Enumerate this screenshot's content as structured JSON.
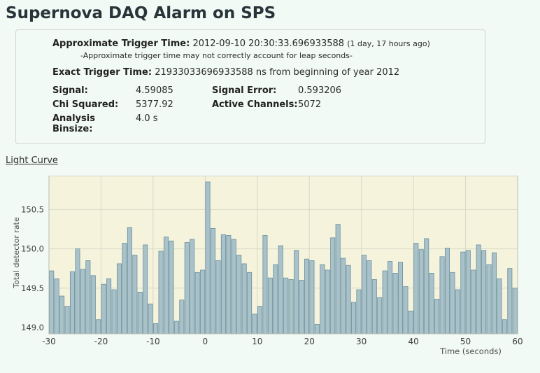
{
  "page": {
    "title": "Supernova DAQ Alarm on SPS"
  },
  "trigger_panel": {
    "approx_label": "Approximate Trigger Time:",
    "approx_value": "2012-09-10 20:30:33.696933588",
    "approx_ago": "(1 day, 17 hours ago)",
    "approx_note": "-Approximate trigger time may not correctly account for leap seconds-",
    "exact_label": "Exact Trigger Time:",
    "exact_value": "21933033696933588 ns from beginning of year 2012",
    "stats": {
      "signal_label": "Signal:",
      "signal_value": "4.59085",
      "signal_error_label": "Signal Error:",
      "signal_error_value": "0.593206",
      "chi_squared_label": "Chi Squared:",
      "chi_squared_value": "5377.92",
      "active_channels_label": "Active Channels:",
      "active_channels_value": "5072",
      "analysis_binsize_label": "Analysis Binsize:",
      "analysis_binsize_value": "4.0 s"
    }
  },
  "light_curve": {
    "label": "Light Curve"
  },
  "chart_data": {
    "type": "bar",
    "title": "Light Curve",
    "xlabel": "Time (seconds)",
    "ylabel": "Total detector rate",
    "xlim": [
      -30,
      60
    ],
    "ylim": [
      148.92,
      150.93
    ],
    "xticks": [
      -30,
      -20,
      -10,
      0,
      10,
      20,
      30,
      40,
      50,
      60
    ],
    "yticks": [
      149.0,
      149.5,
      150.0,
      150.5
    ],
    "bin_width": 1,
    "grid": true,
    "x": [
      -30,
      -29,
      -28,
      -27,
      -26,
      -25,
      -24,
      -23,
      -22,
      -21,
      -20,
      -19,
      -18,
      -17,
      -16,
      -15,
      -14,
      -13,
      -12,
      -11,
      -10,
      -9,
      -8,
      -7,
      -6,
      -5,
      -4,
      -3,
      -2,
      -1,
      0,
      1,
      2,
      3,
      4,
      5,
      6,
      7,
      8,
      9,
      10,
      11,
      12,
      13,
      14,
      15,
      16,
      17,
      18,
      19,
      20,
      21,
      22,
      23,
      24,
      25,
      26,
      27,
      28,
      29,
      30,
      31,
      32,
      33,
      34,
      35,
      36,
      37,
      38,
      39,
      40,
      41,
      42,
      43,
      44,
      45,
      46,
      47,
      48,
      49,
      50,
      51,
      52,
      53,
      54,
      55,
      56,
      57,
      58,
      59
    ],
    "values": [
      149.72,
      149.62,
      149.4,
      149.27,
      149.71,
      150.0,
      149.74,
      149.85,
      149.66,
      149.1,
      149.55,
      149.62,
      149.48,
      149.81,
      150.07,
      150.27,
      149.92,
      149.45,
      150.05,
      149.3,
      149.05,
      149.97,
      150.15,
      150.1,
      149.08,
      149.35,
      150.08,
      150.12,
      149.7,
      149.73,
      150.85,
      150.26,
      149.85,
      150.18,
      150.17,
      150.12,
      149.92,
      149.81,
      149.7,
      149.17,
      149.27,
      150.17,
      149.63,
      149.8,
      150.04,
      149.63,
      149.61,
      149.98,
      149.6,
      149.87,
      149.85,
      149.04,
      149.8,
      149.73,
      150.14,
      150.31,
      149.88,
      149.79,
      149.32,
      149.48,
      149.92,
      149.85,
      149.61,
      149.38,
      149.72,
      149.84,
      149.69,
      149.83,
      149.52,
      149.21,
      150.07,
      149.99,
      150.13,
      149.69,
      149.36,
      149.9,
      150.01,
      149.7,
      149.48,
      149.96,
      149.98,
      149.73,
      150.05,
      149.98,
      149.8,
      149.95,
      149.62,
      149.1,
      149.75,
      149.5
    ],
    "colors": {
      "bar_fill": "#a9c1c9",
      "bar_edge": "#6a919f",
      "plot_bg": "#f5f3dc",
      "grid": "#d8d8ca",
      "frame": "#b9bcb2",
      "tick_text": "#3d3d3d",
      "axis_title": "#4d4d4d"
    }
  }
}
